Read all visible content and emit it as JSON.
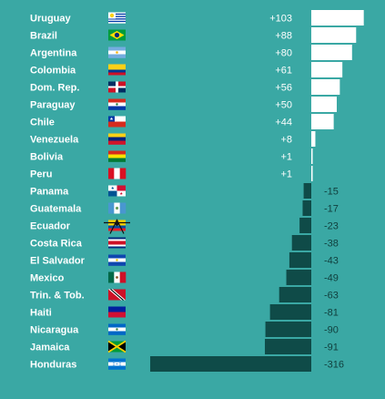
{
  "colors": {
    "background": "#3aa8a4",
    "positive_bar": "#ffffff",
    "negative_bar": "#0f4b48",
    "positive_text": "#ffffff",
    "negative_text": "#103e3c"
  },
  "chart_data": {
    "type": "bar",
    "orientation": "horizontal",
    "title": "",
    "xlabel": "",
    "ylabel": "",
    "grid": false,
    "legend": "none",
    "categories": [
      "Uruguay",
      "Brazil",
      "Argentina",
      "Colombia",
      "Dom. Rep.",
      "Paraguay",
      "Chile",
      "Venezuela",
      "Bolivia",
      "Peru",
      "Panama",
      "Guatemala",
      "Ecuador",
      "Costa Rica",
      "El Salvador",
      "Mexico",
      "Trin. & Tob.",
      "Haiti",
      "Nicaragua",
      "Jamaica",
      "Honduras"
    ],
    "values": [
      103,
      88,
      80,
      61,
      56,
      50,
      44,
      8,
      1,
      1,
      -15,
      -17,
      -23,
      -38,
      -43,
      -49,
      -63,
      -81,
      -90,
      -91,
      -316
    ],
    "value_labels": [
      "+103",
      "+88",
      "+80",
      "+61",
      "+56",
      "+50",
      "+44",
      "+8",
      "+1",
      "+1",
      "-15",
      "-17",
      "-23",
      "-38",
      "-43",
      "-49",
      "-63",
      "-81",
      "-90",
      "-91",
      "-316"
    ],
    "flags": [
      "uruguay-flag-icon",
      "brazil-flag-icon",
      "argentina-flag-icon",
      "colombia-flag-icon",
      "dominican-republic-flag-icon",
      "paraguay-flag-icon",
      "chile-flag-icon",
      "venezuela-flag-icon",
      "bolivia-flag-icon",
      "peru-flag-icon",
      "panama-flag-icon",
      "guatemala-flag-icon",
      "ecuador-flag-icon",
      "costa-rica-flag-icon",
      "el-salvador-flag-icon",
      "mexico-flag-icon",
      "trinidad-and-tobago-flag-icon",
      "haiti-flag-icon",
      "nicaragua-flag-icon",
      "jamaica-flag-icon",
      "honduras-flag-icon"
    ]
  }
}
